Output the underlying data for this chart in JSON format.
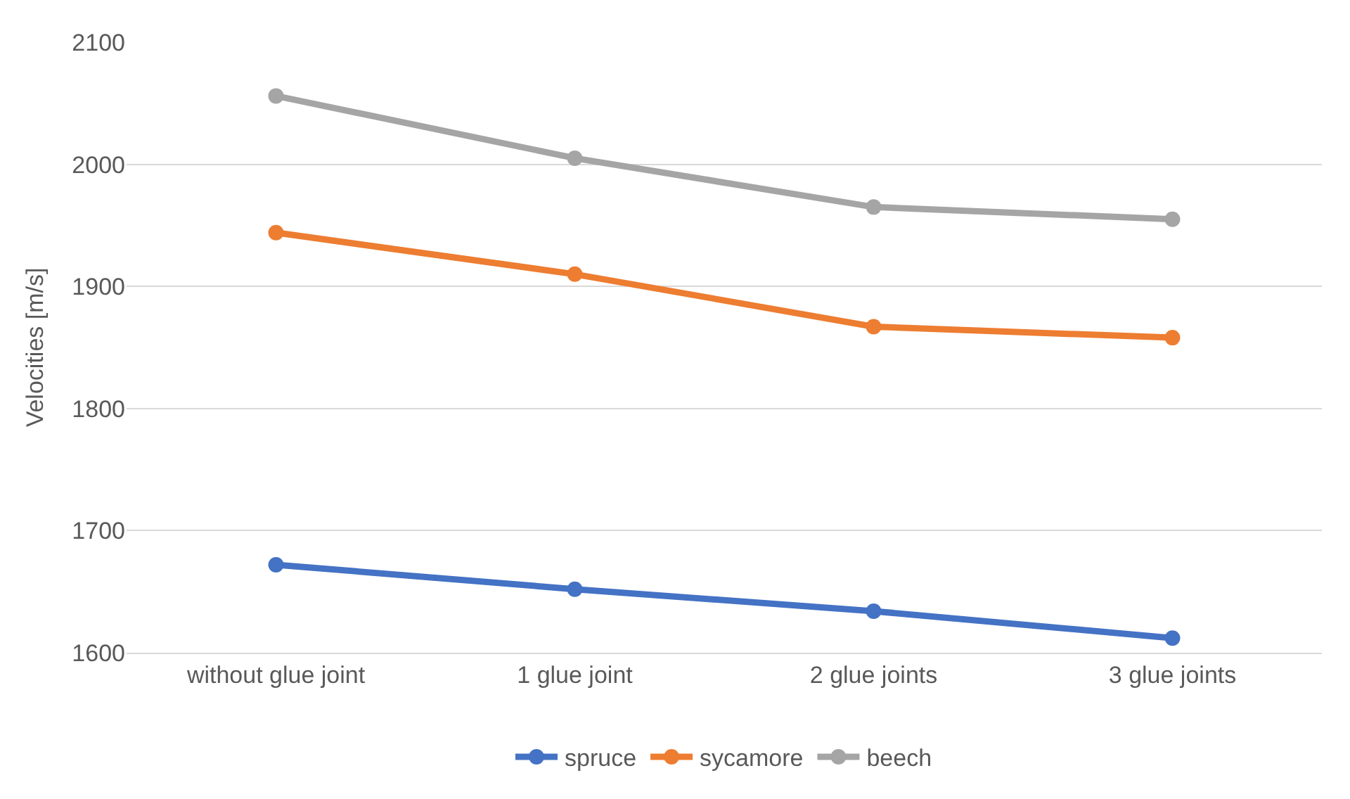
{
  "chart_data": {
    "type": "line",
    "ylabel": "Velocities [m/s]",
    "categories": [
      "without glue joint",
      "1 glue joint",
      "2 glue joints",
      "3 glue joints"
    ],
    "series": [
      {
        "name": "spruce",
        "color": "#4472c4",
        "values": [
          1672,
          1652,
          1634,
          1612
        ]
      },
      {
        "name": "sycamore",
        "color": "#ed7d31",
        "values": [
          1944,
          1910,
          1867,
          1858
        ]
      },
      {
        "name": "beech",
        "color": "#a5a5a5",
        "values": [
          2056,
          2005,
          1965,
          1955
        ]
      }
    ],
    "ylim": [
      1600,
      2100
    ],
    "yticks": [
      1600,
      1700,
      1800,
      1900,
      2000,
      2100
    ],
    "grid": "y",
    "legend": "bottom",
    "marker": "circle",
    "line_style": "solid"
  }
}
